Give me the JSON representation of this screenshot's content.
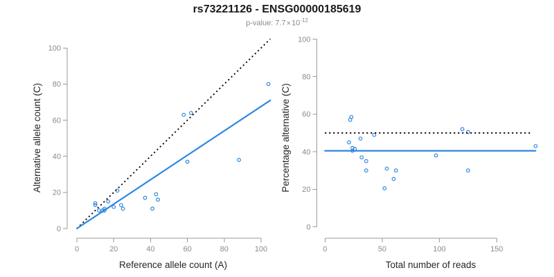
{
  "header": {
    "title": "rs73221126 - ENSG00000185619",
    "subtitle": {
      "label": "p-value: ",
      "mantissa": "7.7",
      "times_sign": "×",
      "base": "10",
      "exponent": "-12"
    }
  },
  "colors": {
    "point_blue": "#2E86E0",
    "line_blue": "#2E86E0",
    "dotted_black": "#000000",
    "axis_gray": "#999999",
    "tick_label_gray": "#8A8A8A",
    "axis_title_color": "#262626",
    "title_color": "#1A1A1A",
    "subtitle_gray": "#8B8B8B",
    "background": "#FFFFFF"
  },
  "chart_data": [
    {
      "type": "scatter",
      "panel": "left",
      "xlabel": "Reference allele count (A)",
      "ylabel": "Alternative allele count (C)",
      "xlim": [
        0,
        105
      ],
      "ylim": [
        0,
        105
      ],
      "xticks": [
        0,
        20,
        40,
        60,
        80,
        100
      ],
      "yticks": [
        0,
        20,
        40,
        60,
        80,
        100
      ],
      "grid": false,
      "legend": "none",
      "marker": "open-circle",
      "points": [
        [
          10,
          13
        ],
        [
          10,
          14
        ],
        [
          12,
          10
        ],
        [
          14,
          10
        ],
        [
          15,
          10
        ],
        [
          15,
          11
        ],
        [
          17,
          15
        ],
        [
          20,
          12
        ],
        [
          22,
          21
        ],
        [
          24,
          13
        ],
        [
          25,
          11
        ],
        [
          37,
          17
        ],
        [
          41,
          11
        ],
        [
          43,
          19
        ],
        [
          44,
          16
        ],
        [
          58,
          63
        ],
        [
          60,
          37
        ],
        [
          62,
          64
        ],
        [
          88,
          38
        ],
        [
          104,
          80
        ]
      ],
      "lines": [
        {
          "name": "identity-line",
          "style": "dotted",
          "color": "#000000",
          "from": [
            0,
            0
          ],
          "to": [
            105,
            105
          ]
        },
        {
          "name": "regression-line",
          "style": "solid",
          "color": "#2E86E0",
          "from": [
            0,
            0
          ],
          "to": [
            105,
            71
          ]
        }
      ]
    },
    {
      "type": "scatter",
      "panel": "right",
      "xlabel": "Total number of reads",
      "ylabel": "Percentage alternative (C)",
      "xlim": [
        0,
        189
      ],
      "ylim": [
        0,
        100
      ],
      "xticks": [
        0,
        50,
        100,
        150
      ],
      "yticks": [
        0,
        20,
        40,
        60,
        80,
        100
      ],
      "grid": false,
      "legend": "none",
      "marker": "open-circle",
      "points": [
        [
          21,
          45
        ],
        [
          22,
          57
        ],
        [
          23,
          58.5
        ],
        [
          24,
          42
        ],
        [
          24,
          40.5
        ],
        [
          26,
          41.5
        ],
        [
          31,
          47
        ],
        [
          32,
          37
        ],
        [
          36,
          35
        ],
        [
          36,
          30
        ],
        [
          43,
          49
        ],
        [
          52,
          20.5
        ],
        [
          54,
          31
        ],
        [
          60,
          25.5
        ],
        [
          62,
          30
        ],
        [
          97,
          38
        ],
        [
          120,
          52
        ],
        [
          125,
          50.5
        ],
        [
          125,
          30
        ],
        [
          184,
          43
        ]
      ],
      "lines": [
        {
          "name": "fifty-percent-line",
          "style": "dotted",
          "color": "#000000",
          "from": [
            0,
            50
          ],
          "to": [
            180,
            50
          ]
        },
        {
          "name": "mean-percentage-line",
          "style": "solid",
          "color": "#2E86E0",
          "from": [
            0,
            40.5
          ],
          "to": [
            184,
            40.5
          ]
        }
      ]
    }
  ]
}
